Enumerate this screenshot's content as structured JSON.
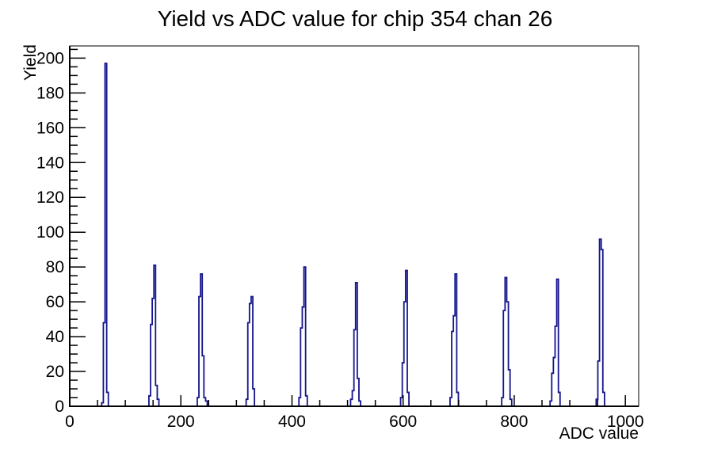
{
  "chart_data": {
    "type": "bar",
    "style": "root-step-histogram",
    "title": "Yield vs ADC value for chip 354 chan 26",
    "xlabel": "ADC value",
    "ylabel": "Yield",
    "xlim": [
      0,
      1024
    ],
    "ylim": [
      0,
      207
    ],
    "x_major_ticks": [
      0,
      200,
      400,
      600,
      800,
      1000
    ],
    "x_minor_step": 50,
    "y_major_ticks": [
      0,
      20,
      40,
      60,
      80,
      100,
      120,
      140,
      160,
      180,
      200
    ],
    "y_minor_step": 5,
    "grid": "off",
    "legend": "none",
    "bin_width": 3,
    "line_color": "#14148c",
    "frame_color": "#000000",
    "background_color": "#ffffff",
    "bins": [
      [
        59,
        2
      ],
      [
        62,
        48
      ],
      [
        65,
        197
      ],
      [
        68,
        8
      ],
      [
        144,
        6
      ],
      [
        147,
        47
      ],
      [
        150,
        62
      ],
      [
        153,
        81
      ],
      [
        156,
        12
      ],
      [
        159,
        4
      ],
      [
        231,
        5
      ],
      [
        234,
        63
      ],
      [
        237,
        76
      ],
      [
        240,
        29
      ],
      [
        243,
        5
      ],
      [
        246,
        3
      ],
      [
        319,
        4
      ],
      [
        322,
        48
      ],
      [
        325,
        59
      ],
      [
        328,
        63
      ],
      [
        331,
        10
      ],
      [
        414,
        5
      ],
      [
        417,
        45
      ],
      [
        420,
        57
      ],
      [
        423,
        80
      ],
      [
        426,
        6
      ],
      [
        507,
        4
      ],
      [
        510,
        9
      ],
      [
        513,
        44
      ],
      [
        516,
        71
      ],
      [
        519,
        16
      ],
      [
        522,
        3
      ],
      [
        597,
        5
      ],
      [
        600,
        25
      ],
      [
        603,
        60
      ],
      [
        606,
        78
      ],
      [
        609,
        8
      ],
      [
        686,
        5
      ],
      [
        689,
        43
      ],
      [
        692,
        52
      ],
      [
        695,
        76
      ],
      [
        698,
        8
      ],
      [
        779,
        5
      ],
      [
        782,
        55
      ],
      [
        785,
        74
      ],
      [
        788,
        60
      ],
      [
        791,
        21
      ],
      [
        794,
        4
      ],
      [
        866,
        3
      ],
      [
        869,
        19
      ],
      [
        872,
        28
      ],
      [
        875,
        46
      ],
      [
        878,
        73
      ],
      [
        881,
        8
      ],
      [
        949,
        4
      ],
      [
        952,
        26
      ],
      [
        955,
        96
      ],
      [
        958,
        90
      ],
      [
        961,
        8
      ]
    ],
    "peak_centers_adc": [
      65,
      153,
      237,
      328,
      423,
      516,
      606,
      695,
      785,
      878,
      955
    ],
    "peak_heights": [
      197,
      81,
      76,
      63,
      80,
      71,
      78,
      76,
      74,
      73,
      96
    ]
  }
}
